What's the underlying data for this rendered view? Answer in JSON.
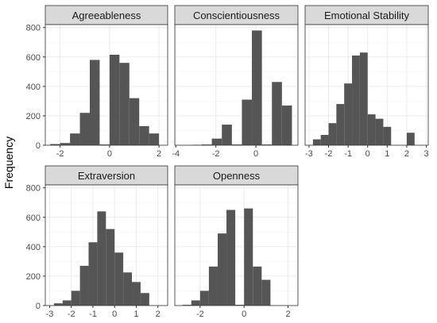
{
  "chart_data": {
    "type": "bar",
    "subtype": "faceted-histogram",
    "ylabel": "Frequency",
    "xlabel": "",
    "ylim": [
      0,
      820
    ],
    "y_ticks": [
      0,
      200,
      400,
      600,
      800
    ],
    "grid": true,
    "theme": "bw",
    "colors": {
      "bar": "#555555",
      "strip": "#d9d9d9",
      "grid": "#ebebeb",
      "panel_border": "#333333"
    },
    "panels": [
      {
        "title": "Agreeableness",
        "xlim": [
          -2.6,
          2.35
        ],
        "x_ticks": [
          -2,
          0,
          2
        ],
        "bars": [
          {
            "x0": -2.4,
            "x1": -2.0,
            "y": 8
          },
          {
            "x0": -2.0,
            "x1": -1.6,
            "y": 15
          },
          {
            "x0": -1.6,
            "x1": -1.2,
            "y": 80
          },
          {
            "x0": -1.2,
            "x1": -0.8,
            "y": 220
          },
          {
            "x0": -0.8,
            "x1": -0.4,
            "y": 580
          },
          {
            "x0": -0.4,
            "x1": 0.0,
            "y": 5
          },
          {
            "x0": 0.0,
            "x1": 0.4,
            "y": 615
          },
          {
            "x0": 0.4,
            "x1": 0.8,
            "y": 560
          },
          {
            "x0": 0.8,
            "x1": 1.2,
            "y": 320
          },
          {
            "x0": 1.2,
            "x1": 1.6,
            "y": 130
          },
          {
            "x0": 1.6,
            "x1": 2.0,
            "y": 80
          }
        ]
      },
      {
        "title": "Conscientiousness",
        "xlim": [
          -4.05,
          2.1
        ],
        "x_ticks": [
          -4,
          -2,
          0
        ],
        "bars": [
          {
            "x0": -3.2,
            "x1": -2.7,
            "y": 3
          },
          {
            "x0": -2.7,
            "x1": -2.2,
            "y": 5
          },
          {
            "x0": -2.2,
            "x1": -1.7,
            "y": 45
          },
          {
            "x0": -1.7,
            "x1": -1.2,
            "y": 140
          },
          {
            "x0": -1.2,
            "x1": -0.7,
            "y": 5
          },
          {
            "x0": -0.7,
            "x1": -0.2,
            "y": 310
          },
          {
            "x0": -0.2,
            "x1": 0.3,
            "y": 780
          },
          {
            "x0": 0.3,
            "x1": 0.8,
            "y": 5
          },
          {
            "x0": 0.8,
            "x1": 1.3,
            "y": 430
          },
          {
            "x0": 1.3,
            "x1": 1.8,
            "y": 270
          }
        ]
      },
      {
        "title": "Emotional Stability",
        "xlim": [
          -3.2,
          3.1
        ],
        "x_ticks": [
          -3,
          -2,
          -1,
          0,
          1,
          2,
          3
        ],
        "bars": [
          {
            "x0": -2.8,
            "x1": -2.4,
            "y": 40
          },
          {
            "x0": -2.4,
            "x1": -2.0,
            "y": 70
          },
          {
            "x0": -2.0,
            "x1": -1.6,
            "y": 150
          },
          {
            "x0": -1.6,
            "x1": -1.2,
            "y": 280
          },
          {
            "x0": -1.2,
            "x1": -0.8,
            "y": 420
          },
          {
            "x0": -0.8,
            "x1": -0.4,
            "y": 610
          },
          {
            "x0": -0.4,
            "x1": 0.0,
            "y": 630
          },
          {
            "x0": 0.0,
            "x1": 0.4,
            "y": 210
          },
          {
            "x0": 0.4,
            "x1": 0.8,
            "y": 180
          },
          {
            "x0": 0.8,
            "x1": 1.2,
            "y": 125
          },
          {
            "x0": 1.2,
            "x1": 1.6,
            "y": 0
          },
          {
            "x0": 1.6,
            "x1": 2.0,
            "y": 0
          },
          {
            "x0": 2.0,
            "x1": 2.4,
            "y": 85
          }
        ]
      },
      {
        "title": "Extraversion",
        "xlim": [
          -3.2,
          2.45
        ],
        "x_ticks": [
          -3,
          -2,
          -1,
          0,
          1,
          2
        ],
        "bars": [
          {
            "x0": -2.8,
            "x1": -2.4,
            "y": 15
          },
          {
            "x0": -2.4,
            "x1": -2.0,
            "y": 35
          },
          {
            "x0": -2.0,
            "x1": -1.6,
            "y": 100
          },
          {
            "x0": -1.6,
            "x1": -1.2,
            "y": 270
          },
          {
            "x0": -1.2,
            "x1": -0.8,
            "y": 430
          },
          {
            "x0": -0.8,
            "x1": -0.4,
            "y": 640
          },
          {
            "x0": -0.4,
            "x1": 0.0,
            "y": 520
          },
          {
            "x0": 0.0,
            "x1": 0.4,
            "y": 360
          },
          {
            "x0": 0.4,
            "x1": 0.8,
            "y": 225
          },
          {
            "x0": 0.8,
            "x1": 1.2,
            "y": 160
          },
          {
            "x0": 1.2,
            "x1": 1.6,
            "y": 85
          }
        ]
      },
      {
        "title": "Openness",
        "xlim": [
          -3.15,
          2.45
        ],
        "x_ticks": [
          -2,
          0,
          2
        ],
        "bars": [
          {
            "x0": -2.8,
            "x1": -2.4,
            "y": 5
          },
          {
            "x0": -2.4,
            "x1": -2.0,
            "y": 35
          },
          {
            "x0": -2.0,
            "x1": -1.6,
            "y": 100
          },
          {
            "x0": -1.6,
            "x1": -1.2,
            "y": 265
          },
          {
            "x0": -1.2,
            "x1": -0.8,
            "y": 490
          },
          {
            "x0": -0.8,
            "x1": -0.4,
            "y": 650
          },
          {
            "x0": -0.4,
            "x1": 0.0,
            "y": 5
          },
          {
            "x0": 0.0,
            "x1": 0.4,
            "y": 660
          },
          {
            "x0": 0.4,
            "x1": 0.8,
            "y": 265
          },
          {
            "x0": 0.8,
            "x1": 1.2,
            "y": 175
          }
        ]
      }
    ]
  }
}
